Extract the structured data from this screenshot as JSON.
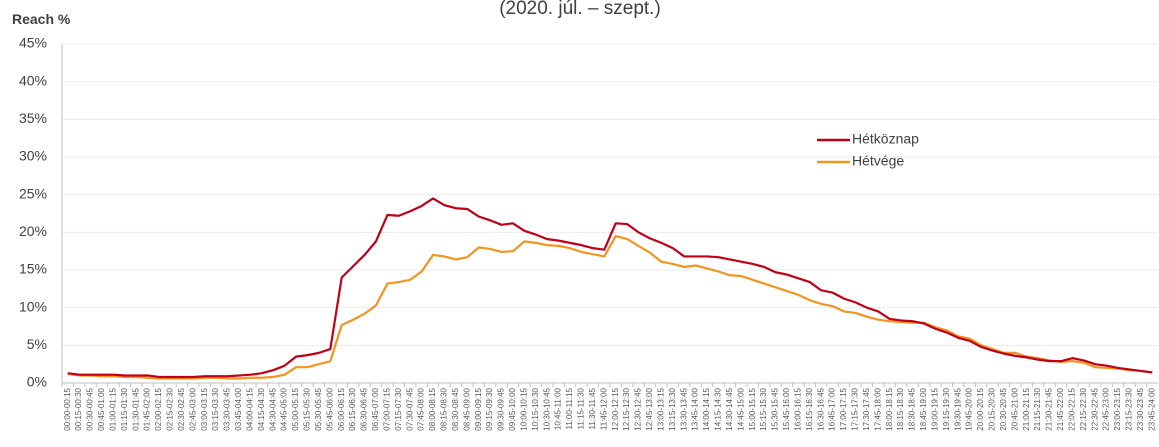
{
  "chart_data": {
    "type": "line",
    "title": "(2020. júl. – szept.)",
    "y_label": "Reach %",
    "categories": [
      "00:00-00:15",
      "00:15-00:30",
      "00:30-00:45",
      "00:45-01:00",
      "01:00-01:15",
      "01:15-01:30",
      "01:30-01:45",
      "01:45-02:00",
      "02:00-02:15",
      "02:15-02:30",
      "02:30-02:45",
      "02:45-03:00",
      "03:00-03:15",
      "03:15-03:30",
      "03:30-03:45",
      "03:45-04:00",
      "04:00-04:15",
      "04:15-04:30",
      "04:30-04:45",
      "04:45-05:00",
      "05:00-05:15",
      "05:15-05:30",
      "05:30-05:45",
      "05:45-06:00",
      "06:00-06:15",
      "06:15-06:30",
      "06:30-06:45",
      "06:45-07:00",
      "07:00-07:15",
      "07:15-07:30",
      "07:30-07:45",
      "07:45-08:00",
      "08:00-08:15",
      "08:15-08:30",
      "08:30-08:45",
      "08:45-09:00",
      "09:00-09:15",
      "09:15-09:30",
      "09:30-09:45",
      "09:45-10:00",
      "10:00-10:15",
      "10:15-10:30",
      "10:30-10:45",
      "10:45-11:00",
      "11:00-11:15",
      "11:15-11:30",
      "11:30-11:45",
      "11:45-12:00",
      "12:00-12:15",
      "12:15-12:30",
      "12:30-12:45",
      "12:45-13:00",
      "13:00-13:15",
      "13:15-13:30",
      "13:30-13:45",
      "13:45-14:00",
      "14:00-14:15",
      "14:15-14:30",
      "14:30-14:45",
      "14:45-15:00",
      "15:00-15:15",
      "15:15-15:30",
      "15:30-15:45",
      "15:45-16:00",
      "16:00-16:15",
      "16:15-16:30",
      "16:30-16:45",
      "16:45-17:00",
      "17:00-17:15",
      "17:15-17:30",
      "17:30-17:45",
      "17:45-18:00",
      "18:00-18:15",
      "18:15-18:30",
      "18:30-18:45",
      "18:45-19:00",
      "19:00-19:15",
      "19:15-19:30",
      "19:30-19:45",
      "19:45-20:00",
      "20:00-20:15",
      "20:15-20:30",
      "20:30-20:45",
      "20:45-21:00",
      "21:00-21:15",
      "21:15-21:30",
      "21:30-21:45",
      "21:45-22:00",
      "22:00-22:15",
      "22:15-22:30",
      "22:30-22:45",
      "22:45-23:00",
      "23:00-23:15",
      "23:15-23:30",
      "23:30-23:45",
      "23:45-24:00"
    ],
    "series": [
      {
        "name": "Hétköznap",
        "color": "#c00018",
        "values": [
          1.3,
          1.1,
          1.1,
          1.1,
          1.1,
          1.0,
          1.0,
          1.0,
          0.8,
          0.8,
          0.8,
          0.8,
          0.9,
          0.9,
          0.9,
          1.0,
          1.1,
          1.3,
          1.7,
          2.3,
          3.5,
          3.7,
          4.0,
          4.5,
          14.0,
          15.5,
          17.0,
          18.8,
          22.3,
          22.2,
          22.8,
          23.5,
          24.5,
          23.6,
          23.2,
          23.1,
          22.1,
          21.6,
          21.0,
          21.2,
          20.2,
          19.7,
          19.1,
          18.9,
          18.6,
          18.3,
          17.9,
          17.7,
          21.2,
          21.1,
          20.0,
          19.2,
          18.6,
          17.9,
          16.8,
          16.8,
          16.8,
          16.7,
          16.4,
          16.1,
          15.8,
          15.4,
          14.7,
          14.4,
          13.9,
          13.4,
          12.3,
          12.0,
          11.2,
          10.7,
          10.0,
          9.5,
          8.5,
          8.3,
          8.2,
          7.9,
          7.2,
          6.7,
          6.0,
          5.6,
          4.8,
          4.3,
          3.9,
          3.6,
          3.4,
          3.1,
          2.9,
          2.9,
          3.3,
          3.0,
          2.5,
          2.3,
          2.0,
          1.8,
          1.6,
          1.4
        ]
      },
      {
        "name": "Hétvége",
        "color": "#f39420",
        "values": [
          1.2,
          1.0,
          1.0,
          0.9,
          0.9,
          0.8,
          0.8,
          0.7,
          0.6,
          0.6,
          0.6,
          0.6,
          0.7,
          0.7,
          0.6,
          0.6,
          0.7,
          0.7,
          0.8,
          1.1,
          2.1,
          2.1,
          2.5,
          2.9,
          7.7,
          8.4,
          9.2,
          10.3,
          13.2,
          13.4,
          13.7,
          14.8,
          17.0,
          16.8,
          16.4,
          16.7,
          18.0,
          17.8,
          17.4,
          17.5,
          18.8,
          18.6,
          18.3,
          18.2,
          17.9,
          17.4,
          17.1,
          16.8,
          19.5,
          19.1,
          18.2,
          17.3,
          16.1,
          15.8,
          15.4,
          15.6,
          15.2,
          14.8,
          14.3,
          14.2,
          13.7,
          13.2,
          12.7,
          12.2,
          11.7,
          11.0,
          10.5,
          10.2,
          9.5,
          9.3,
          8.8,
          8.4,
          8.2,
          8.1,
          8.0,
          8.0,
          7.4,
          7.0,
          6.2,
          5.9,
          5.0,
          4.5,
          4.0,
          4.0,
          3.5,
          3.3,
          3.0,
          2.8,
          2.9,
          2.7,
          2.1,
          2.0,
          1.9,
          1.7,
          1.6,
          1.4
        ]
      }
    ],
    "ylim": [
      0,
      45
    ],
    "yticks": [
      {
        "value": 0,
        "label": "0%"
      },
      {
        "value": 5,
        "label": "5%"
      },
      {
        "value": 10,
        "label": "10%"
      },
      {
        "value": 15,
        "label": "15%"
      },
      {
        "value": 20,
        "label": "20%"
      },
      {
        "value": 25,
        "label": "25%"
      },
      {
        "value": 30,
        "label": "30%"
      },
      {
        "value": 35,
        "label": "35%"
      },
      {
        "value": 40,
        "label": "40%"
      },
      {
        "value": 45,
        "label": "45%"
      }
    ],
    "grid": true,
    "legend": "right"
  }
}
